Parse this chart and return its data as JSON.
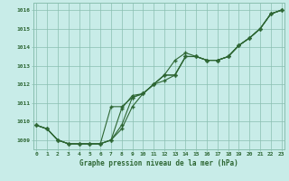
{
  "title": "Graphe pression niveau de la mer (hPa)",
  "bg_color": "#c8ece8",
  "grid_color": "#8abfb0",
  "line_color": "#2d6633",
  "marker_color": "#2d6633",
  "xlim": [
    0,
    23
  ],
  "ylim": [
    1008.5,
    1016.4
  ],
  "yticks": [
    1009,
    1010,
    1011,
    1012,
    1013,
    1014,
    1015,
    1016
  ],
  "xticks": [
    0,
    1,
    2,
    3,
    4,
    5,
    6,
    7,
    8,
    9,
    10,
    11,
    12,
    13,
    14,
    15,
    16,
    17,
    18,
    19,
    20,
    21,
    22,
    23
  ],
  "series": [
    [
      1009.8,
      1009.6,
      1009.0,
      1008.8,
      1008.8,
      1008.8,
      1008.8,
      1009.0,
      1009.6,
      1010.8,
      1011.5,
      1012.0,
      1012.5,
      1013.3,
      1013.7,
      1013.5,
      1013.3,
      1013.3,
      1013.5,
      1014.1,
      1014.5,
      1015.0,
      1015.8,
      1016.0
    ],
    [
      1009.8,
      1009.6,
      1009.0,
      1008.8,
      1008.8,
      1008.8,
      1008.8,
      1009.0,
      1010.7,
      1011.4,
      1011.5,
      1012.0,
      1012.2,
      1012.5,
      1013.5,
      1013.5,
      1013.3,
      1013.3,
      1013.5,
      1014.1,
      1014.5,
      1015.0,
      1015.8,
      1016.0
    ],
    [
      1009.8,
      1009.6,
      1009.0,
      1008.8,
      1008.8,
      1008.8,
      1008.8,
      1009.0,
      1009.8,
      1011.3,
      1011.5,
      1012.0,
      1012.5,
      1012.5,
      1013.5,
      1013.5,
      1013.3,
      1013.3,
      1013.5,
      1014.1,
      1014.5,
      1015.0,
      1015.8,
      1016.0
    ],
    [
      1009.8,
      1009.6,
      1009.0,
      1008.8,
      1008.8,
      1008.8,
      1008.8,
      1010.8,
      1010.8,
      1011.3,
      1011.5,
      1012.0,
      1012.5,
      1012.5,
      1013.5,
      1013.5,
      1013.3,
      1013.3,
      1013.5,
      1014.1,
      1014.5,
      1015.0,
      1015.8,
      1016.0
    ]
  ]
}
